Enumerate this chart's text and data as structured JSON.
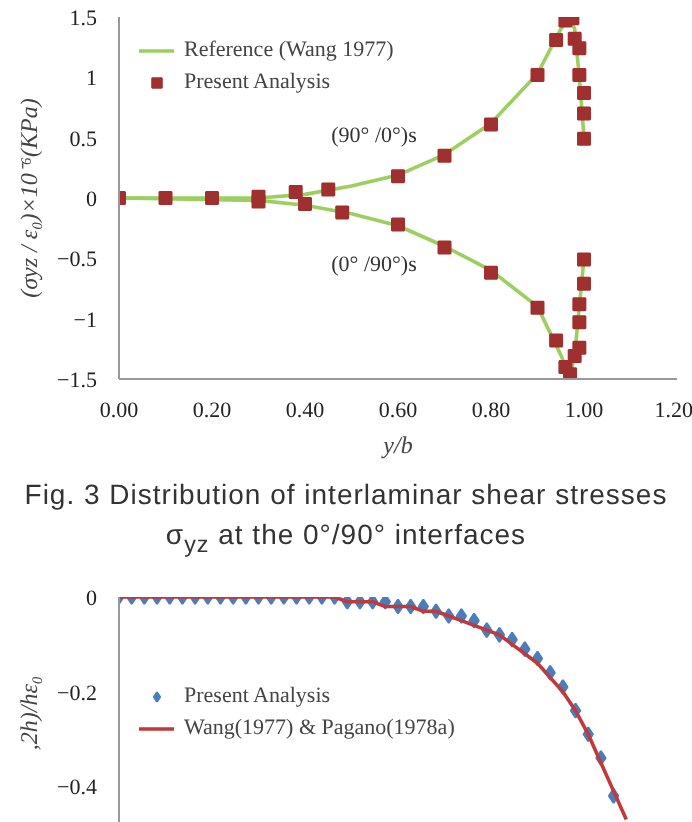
{
  "chart_data": [
    {
      "type": "scatter",
      "xlabel": "y/b",
      "ylabel": "(σyz / ε₀)×10⁻⁶(KPa)",
      "xlim": [
        0,
        1.2
      ],
      "ylim": [
        -1.5,
        1.5
      ],
      "xticks": [
        {
          "value": 0,
          "label": "0.00"
        },
        {
          "value": 0.2,
          "label": "0.20"
        },
        {
          "value": 0.4,
          "label": "0.40"
        },
        {
          "value": 0.6,
          "label": "0.60"
        },
        {
          "value": 0.8,
          "label": "0.80"
        },
        {
          "value": 1.0,
          "label": "1.00"
        },
        {
          "value": 1.2,
          "label": "1.20"
        }
      ],
      "yticks": [
        -1.5,
        -1,
        -0.5,
        0,
        0.5,
        1,
        1.5
      ],
      "grid": false,
      "legend": "top left",
      "series": [
        {
          "name": "Reference (Wang 1977)",
          "type": "line",
          "color": "#9bcf5f",
          "marker": "none",
          "x": [
            0,
            0.3,
            0.4,
            0.5,
            0.6,
            0.7,
            0.8,
            0.9,
            0.95,
            0.97,
            0.98,
            0.99,
            1.0
          ],
          "values": [
            0,
            0,
            0.03,
            0.1,
            0.19,
            0.36,
            0.62,
            1.03,
            1.4,
            1.49,
            1.4,
            1.0,
            0.5
          ]
        },
        {
          "type": "line",
          "color": "#9bcf5f",
          "marker": "none",
          "x": [
            0,
            0.3,
            0.4,
            0.5,
            0.6,
            0.7,
            0.8,
            0.9,
            0.95,
            0.97,
            0.98,
            0.99,
            1.0
          ],
          "values": [
            0,
            -0.02,
            -0.06,
            -0.13,
            -0.23,
            -0.4,
            -0.6,
            -0.9,
            -1.3,
            -1.48,
            -1.3,
            -0.9,
            -0.5
          ]
        },
        {
          "name": "Present Analysis",
          "color": "#a0302f",
          "marker": "square",
          "x": [
            0,
            0.1,
            0.2,
            0.3,
            0.38,
            0.45,
            0.6,
            0.7,
            0.8,
            0.9,
            0.94,
            0.96,
            0.975,
            0.98,
            0.99,
            0.99,
            1.0,
            1.0,
            1.0
          ],
          "values": [
            0,
            0,
            0,
            0.01,
            0.05,
            0.07,
            0.18,
            0.35,
            0.61,
            1.02,
            1.31,
            1.47,
            1.49,
            1.32,
            1.24,
            1.02,
            0.87,
            0.7,
            0.49
          ]
        },
        {
          "color": "#a0302f",
          "marker": "square",
          "x": [
            0.3,
            0.4,
            0.48,
            0.6,
            0.7,
            0.8,
            0.9,
            0.94,
            0.96,
            0.97,
            0.98,
            0.99,
            0.99,
            0.99,
            1.0,
            1.0
          ],
          "values": [
            -0.03,
            -0.05,
            -0.12,
            -0.22,
            -0.41,
            -0.62,
            -0.91,
            -1.18,
            -1.4,
            -1.46,
            -1.31,
            -1.24,
            -1.03,
            -0.88,
            -0.71,
            -0.51
          ]
        }
      ],
      "annotations": [
        {
          "text": "(90° /0°)s",
          "x": 0.6,
          "y": 0.18
        },
        {
          "text": "(0° /90°)s",
          "x": 0.6,
          "y": -0.22
        },
        "Fig. 3 Distribution of interlaminar shear stresses σ$_{yz}$ at the 0°/90° interfaces"
      ]
    },
    {
      "type": "scatter",
      "ylabel": ",2h)/hε₀",
      "ylim": [
        -0.49,
        0
      ],
      "yticks": [
        -0.4,
        -0.2,
        0
      ],
      "categories": [
        null,
        null,
        null,
        null,
        null,
        null,
        null,
        null,
        null,
        null,
        null,
        null,
        null,
        null,
        null,
        null,
        null,
        null,
        null,
        null,
        null,
        null,
        null,
        null,
        null,
        null,
        null,
        null,
        null,
        null,
        null,
        null,
        null,
        null,
        null,
        null,
        null,
        null,
        null,
        null,
        null
      ],
      "tick_labels": "y",
      "grid": false,
      "legend": "left",
      "series": [
        {
          "name": "Present Analysis",
          "color": "#4a7ebb",
          "marker": "diamond",
          "values": [
            0,
            0,
            0,
            0,
            0,
            0,
            0,
            0,
            0,
            0,
            0,
            0,
            0,
            0,
            0,
            0,
            0,
            0,
            -0.01,
            -0.01,
            -0.01,
            -0.01,
            -0.02,
            -0.02,
            -0.02,
            -0.03,
            -0.04,
            -0.04,
            -0.05,
            -0.07,
            -0.08,
            -0.09,
            -0.11,
            -0.13,
            -0.16,
            -0.19,
            -0.24,
            -0.29,
            -0.34,
            -0.42,
            null
          ]
        },
        {
          "name": "Wang(1977) & Pagano(1978a)",
          "type": "line",
          "color": "#c0393b",
          "marker": "none",
          "values": [
            0,
            0,
            0,
            0,
            0,
            0,
            0,
            0,
            0,
            0,
            0,
            0,
            0,
            0,
            0,
            0,
            0,
            0,
            -0.01,
            -0.01,
            -0.01,
            -0.02,
            -0.02,
            -0.02,
            -0.03,
            -0.03,
            -0.04,
            -0.05,
            -0.06,
            -0.07,
            -0.08,
            -0.1,
            -0.12,
            -0.14,
            -0.17,
            -0.2,
            -0.24,
            -0.29,
            -0.35,
            -0.41,
            -0.47
          ]
        }
      ]
    }
  ]
}
